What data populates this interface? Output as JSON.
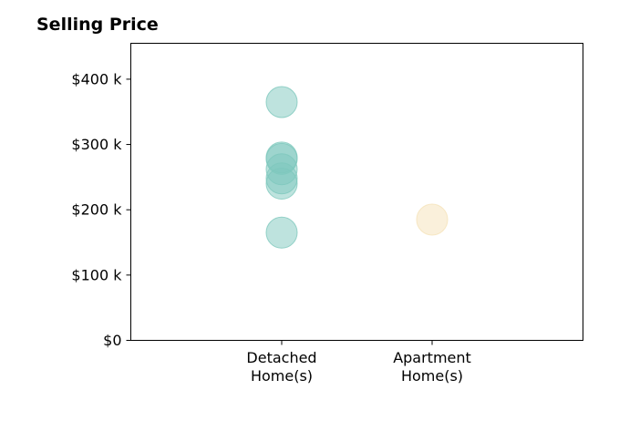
{
  "chart_data": {
    "type": "scatter",
    "title": "Selling Price",
    "xlabel": "",
    "ylabel": "",
    "categories": [
      [
        "Detached",
        "Home(s)"
      ],
      [
        "Apartment",
        "Home(s)"
      ]
    ],
    "series": [
      {
        "category": "Detached Home(s)",
        "color": "#7ec8bd",
        "values": [
          365000,
          280000,
          278000,
          262000,
          248000,
          240000,
          165000
        ]
      },
      {
        "category": "Apartment Home(s)",
        "color": "#f5e2b8",
        "values": [
          185000
        ]
      }
    ],
    "ylim": [
      0,
      455000
    ],
    "xlim": [
      -1,
      2
    ],
    "yticks": [
      {
        "value": 0,
        "label": "$0"
      },
      {
        "value": 100000,
        "label": "$100 k"
      },
      {
        "value": 200000,
        "label": "$200 k"
      },
      {
        "value": 300000,
        "label": "$300 k"
      },
      {
        "value": 400000,
        "label": "$400 k"
      }
    ],
    "grid": false,
    "legend": "none"
  }
}
